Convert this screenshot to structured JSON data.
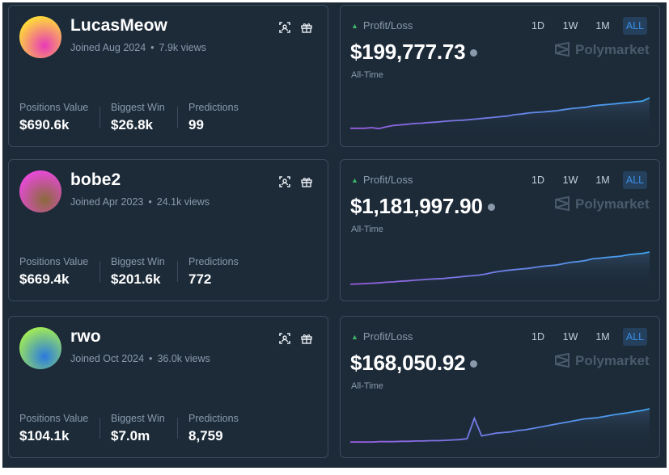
{
  "profiles": [
    {
      "username": "LucasMeow",
      "joined": "Joined Aug 2024",
      "views": "7.9k views",
      "avatar_gradient": [
        "#ffd93a",
        "#e83ab8"
      ],
      "positions_label": "Positions Value",
      "positions_value": "$690.6k",
      "biggest_label": "Biggest Win",
      "biggest_value": "$26.8k",
      "predictions_label": "Predictions",
      "predictions_value": "99",
      "pl_label": "Profit/Loss",
      "pl_value": "$199,777.73",
      "pl_period": "All-Time",
      "ranges": [
        "1D",
        "1W",
        "1M",
        "ALL"
      ],
      "active_range": "ALL",
      "brand": "Polymarket",
      "chart_series": [
        0.1,
        0.1,
        0.1,
        0.12,
        0.09,
        0.14,
        0.18,
        0.2,
        0.22,
        0.24,
        0.25,
        0.27,
        0.28,
        0.3,
        0.32,
        0.33,
        0.34,
        0.36,
        0.38,
        0.4,
        0.42,
        0.44,
        0.46,
        0.5,
        0.52,
        0.55,
        0.57,
        0.58,
        0.6,
        0.62,
        0.65,
        0.68,
        0.7,
        0.72,
        0.76,
        0.78,
        0.8,
        0.82,
        0.84,
        0.86,
        0.88,
        0.9,
        1.0
      ]
    },
    {
      "username": "bobe2",
      "joined": "Joined Apr 2023",
      "views": "24.1k views",
      "avatar_gradient": [
        "#e64ad6",
        "#8a6a3a"
      ],
      "positions_label": "Positions Value",
      "positions_value": "$669.4k",
      "biggest_label": "Biggest Win",
      "biggest_value": "$201.6k",
      "predictions_label": "Predictions",
      "predictions_value": "772",
      "pl_label": "Profit/Loss",
      "pl_value": "$1,181,997.90",
      "pl_period": "All-Time",
      "ranges": [
        "1D",
        "1W",
        "1M",
        "ALL"
      ],
      "active_range": "ALL",
      "brand": "Polymarket",
      "chart_series": [
        0.05,
        0.06,
        0.07,
        0.08,
        0.09,
        0.11,
        0.12,
        0.14,
        0.15,
        0.17,
        0.18,
        0.2,
        0.21,
        0.22,
        0.24,
        0.26,
        0.28,
        0.3,
        0.32,
        0.35,
        0.4,
        0.43,
        0.46,
        0.48,
        0.5,
        0.52,
        0.55,
        0.58,
        0.6,
        0.62,
        0.66,
        0.7,
        0.72,
        0.75,
        0.8,
        0.82,
        0.84,
        0.86,
        0.88,
        0.92,
        0.94,
        0.96,
        1.0
      ]
    },
    {
      "username": "rwo",
      "joined": "Joined Oct 2024",
      "views": "36.0k views",
      "avatar_gradient": [
        "#9ee85a",
        "#2a7ae0"
      ],
      "positions_label": "Positions Value",
      "positions_value": "$104.1k",
      "biggest_label": "Biggest Win",
      "biggest_value": "$7.0m",
      "predictions_label": "Predictions",
      "predictions_value": "8,759",
      "pl_label": "Profit/Loss",
      "pl_value": "$168,050.92",
      "pl_period": "All-Time",
      "ranges": [
        "1D",
        "1W",
        "1M",
        "ALL"
      ],
      "active_range": "ALL",
      "brand": "Polymarket",
      "chart_series": [
        0.02,
        0.02,
        0.02,
        0.02,
        0.03,
        0.03,
        0.03,
        0.04,
        0.04,
        0.05,
        0.05,
        0.06,
        0.06,
        0.07,
        0.08,
        0.09,
        0.12,
        0.72,
        0.2,
        0.24,
        0.28,
        0.3,
        0.32,
        0.36,
        0.38,
        0.42,
        0.46,
        0.5,
        0.54,
        0.58,
        0.62,
        0.66,
        0.7,
        0.72,
        0.74,
        0.78,
        0.82,
        0.85,
        0.88,
        0.92,
        0.95,
        1.0
      ]
    }
  ]
}
